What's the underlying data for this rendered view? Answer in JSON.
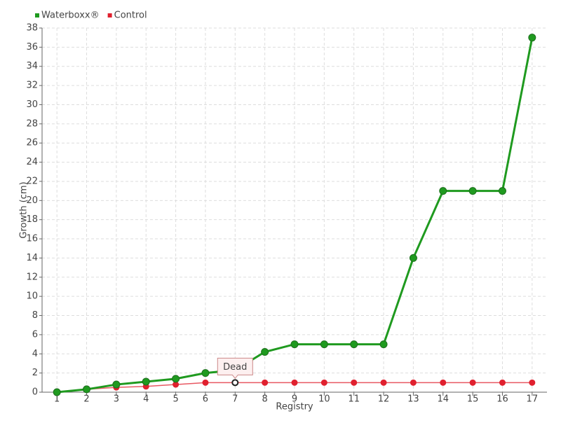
{
  "chart_data": {
    "type": "line",
    "x_label": "Registry",
    "y_label": "Growth (cm)",
    "x": [
      1,
      2,
      3,
      4,
      5,
      6,
      7,
      8,
      9,
      10,
      11,
      12,
      13,
      14,
      15,
      16,
      17
    ],
    "xlim": [
      0.5,
      17.5
    ],
    "xticks": [
      1,
      2,
      3,
      4,
      5,
      6,
      7,
      8,
      9,
      10,
      11,
      12,
      13,
      14,
      15,
      16,
      17
    ],
    "ylim": [
      0,
      38
    ],
    "yticks": [
      0,
      2,
      4,
      6,
      8,
      10,
      12,
      14,
      16,
      18,
      20,
      22,
      24,
      26,
      28,
      30,
      32,
      34,
      36,
      38
    ],
    "grid": true,
    "legend": "top-left",
    "series": [
      {
        "name": "Waterboxx®",
        "color": "#1f9a1f",
        "values": [
          0,
          0.3,
          0.8,
          1.1,
          1.4,
          2,
          2.3,
          4.2,
          5,
          5,
          5,
          5,
          14,
          21,
          21,
          21,
          37
        ]
      },
      {
        "name": "Control",
        "color": "#e0202e",
        "values": [
          0,
          0.3,
          0.5,
          0.6,
          0.8,
          1,
          1,
          1,
          1,
          1,
          1,
          1,
          1,
          1,
          1,
          1,
          1
        ]
      }
    ],
    "annotations": [
      {
        "text": "Dead",
        "x": 7,
        "y": 1
      }
    ]
  }
}
